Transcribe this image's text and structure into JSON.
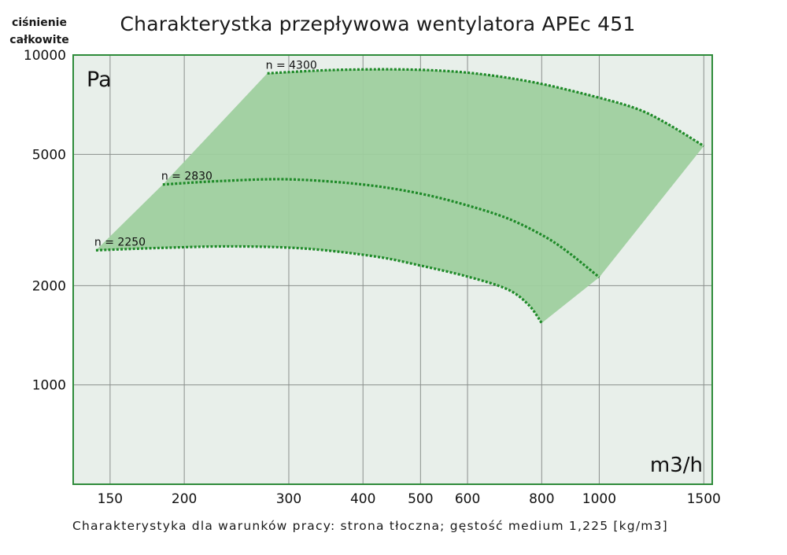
{
  "chart_data": {
    "type": "area",
    "title": "Charakterystka przepływowa wentylatora APEc 451",
    "ylabel": [
      "ciśnienie",
      "całkowite"
    ],
    "ylabel_unit": "Pa",
    "xlabel_unit": "m3/h",
    "footnote": "Charakterystyka dla warunków pracy: strona tłoczna; gęstość medium 1,225 [kg/m3]",
    "x_scale": "log",
    "y_scale": "log",
    "xlim": [
      130,
      1550
    ],
    "ylim": [
      500,
      10000
    ],
    "x_ticks": [
      {
        "value": 150,
        "label": "150"
      },
      {
        "value": 200,
        "label": "200"
      },
      {
        "value": 300,
        "label": "300"
      },
      {
        "value": 400,
        "label": "400"
      },
      {
        "value": 500,
        "label": "500"
      },
      {
        "value": 600,
        "label": "600"
      },
      {
        "value": 800,
        "label": "800"
      },
      {
        "value": 1000,
        "label": "1000"
      },
      {
        "value": 1500,
        "label": "1500"
      }
    ],
    "y_ticks": [
      {
        "value": 1000,
        "label": "1000"
      },
      {
        "value": 2000,
        "label": "2000"
      },
      {
        "value": 5000,
        "label": "5000"
      },
      {
        "value": 10000,
        "label": "10000"
      }
    ],
    "grid": true,
    "series": [
      {
        "name": "n = 4300",
        "points": [
          [
            276,
            8800
          ],
          [
            350,
            9000
          ],
          [
            450,
            9050
          ],
          [
            550,
            8950
          ],
          [
            650,
            8700
          ],
          [
            780,
            8250
          ],
          [
            950,
            7600
          ],
          [
            1150,
            6900
          ],
          [
            1300,
            6200
          ],
          [
            1500,
            5300
          ]
        ]
      },
      {
        "name": "n = 2830",
        "points": [
          [
            184,
            4050
          ],
          [
            230,
            4150
          ],
          [
            300,
            4200
          ],
          [
            400,
            4050
          ],
          [
            500,
            3800
          ],
          [
            600,
            3500
          ],
          [
            700,
            3200
          ],
          [
            800,
            2850
          ],
          [
            880,
            2550
          ],
          [
            1000,
            2120
          ]
        ]
      },
      {
        "name": "n = 2250",
        "points": [
          [
            142,
            2560
          ],
          [
            180,
            2600
          ],
          [
            240,
            2630
          ],
          [
            320,
            2590
          ],
          [
            420,
            2450
          ],
          [
            500,
            2300
          ],
          [
            600,
            2130
          ],
          [
            700,
            1950
          ],
          [
            760,
            1750
          ],
          [
            800,
            1540
          ]
        ]
      }
    ],
    "envelope": {
      "lower_edge": [
        [
          800,
          1540
        ],
        [
          1000,
          2120
        ],
        [
          1500,
          5300
        ]
      ],
      "left_edge": [
        [
          142,
          2560
        ],
        [
          184,
          4050
        ],
        [
          276,
          8800
        ]
      ]
    }
  }
}
